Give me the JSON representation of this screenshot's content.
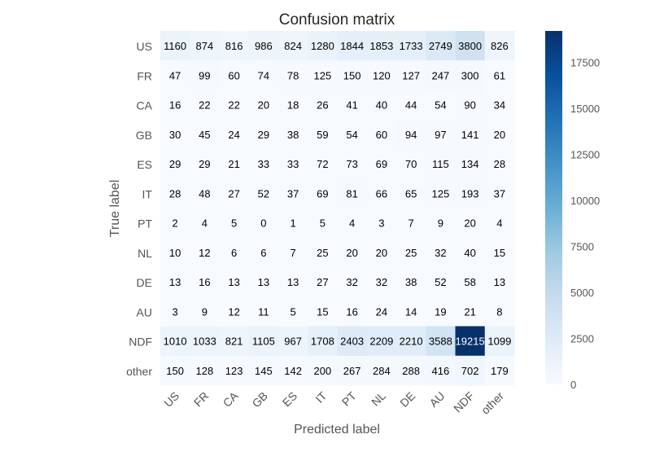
{
  "chart_data": {
    "type": "heatmap",
    "title": "Confusion matrix",
    "xlabel": "Predicted label",
    "ylabel": "True label",
    "x_categories": [
      "US",
      "FR",
      "CA",
      "GB",
      "ES",
      "IT",
      "PT",
      "NL",
      "DE",
      "AU",
      "NDF",
      "other"
    ],
    "y_categories": [
      "US",
      "FR",
      "CA",
      "GB",
      "ES",
      "IT",
      "PT",
      "NL",
      "DE",
      "AU",
      "NDF",
      "other"
    ],
    "values": [
      [
        1160,
        874,
        816,
        986,
        824,
        1280,
        1844,
        1853,
        1733,
        2749,
        3800,
        826
      ],
      [
        47,
        99,
        60,
        74,
        78,
        125,
        150,
        120,
        127,
        247,
        300,
        61
      ],
      [
        16,
        22,
        22,
        20,
        18,
        26,
        41,
        40,
        44,
        54,
        90,
        34
      ],
      [
        30,
        45,
        24,
        29,
        38,
        59,
        54,
        60,
        94,
        97,
        141,
        20
      ],
      [
        29,
        29,
        21,
        33,
        33,
        72,
        73,
        69,
        70,
        115,
        134,
        28
      ],
      [
        28,
        48,
        27,
        52,
        37,
        69,
        81,
        66,
        65,
        125,
        193,
        37
      ],
      [
        2,
        4,
        5,
        0,
        1,
        5,
        4,
        3,
        7,
        9,
        20,
        4
      ],
      [
        10,
        12,
        6,
        6,
        7,
        25,
        20,
        20,
        25,
        32,
        40,
        15
      ],
      [
        13,
        16,
        13,
        13,
        13,
        27,
        32,
        32,
        38,
        52,
        58,
        13
      ],
      [
        3,
        9,
        12,
        11,
        5,
        15,
        16,
        24,
        14,
        19,
        21,
        8
      ],
      [
        1010,
        1033,
        821,
        1105,
        967,
        1708,
        2403,
        2209,
        2210,
        3588,
        19215,
        1099
      ],
      [
        150,
        128,
        123,
        145,
        142,
        200,
        267,
        284,
        288,
        416,
        702,
        179
      ]
    ],
    "colorbar": {
      "min": 0,
      "max": 19215,
      "ticks": [
        0,
        2500,
        5000,
        7500,
        10000,
        12500,
        15000,
        17500
      ],
      "colormap": "Blues"
    },
    "grid": false,
    "text_colors": {
      "dark_text": "#000000",
      "light_text": "#ffffff",
      "axis_text": "#555555",
      "title_text": "#262626"
    }
  }
}
